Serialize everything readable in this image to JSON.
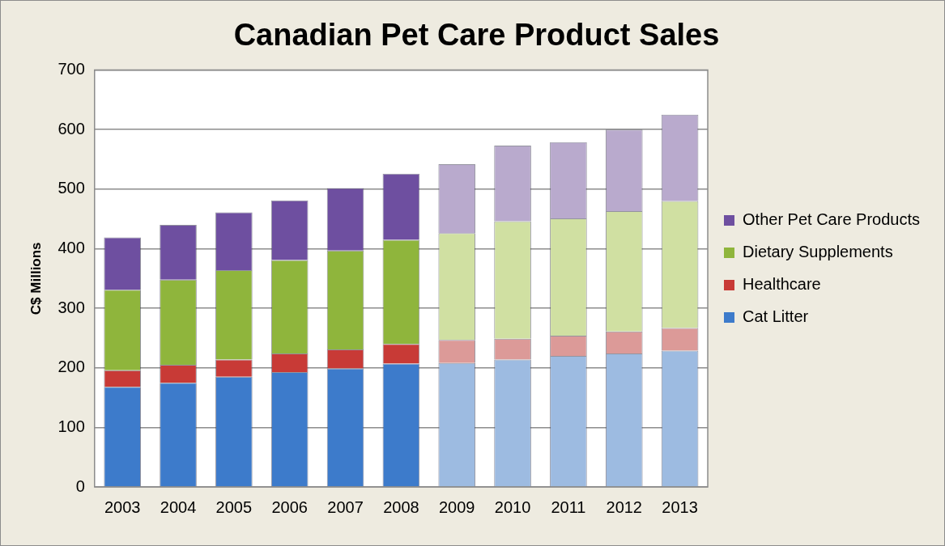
{
  "chart_data": {
    "type": "bar",
    "title": "Canadian Pet Care Product Sales",
    "ylabel": "C$ Millions",
    "stacked": true,
    "categories": [
      "2003",
      "2004",
      "2005",
      "2006",
      "2007",
      "2008",
      "2009",
      "2010",
      "2011",
      "2012",
      "2013"
    ],
    "series": [
      {
        "name": "Cat Litter",
        "color": "#3d7bcb",
        "colors": [
          "#3d7bcb",
          "#3d7bcb",
          "#3d7bcb",
          "#3d7bcb",
          "#3d7bcb",
          "#3d7bcb",
          "#9dbbe1",
          "#9dbbe1",
          "#9dbbe1",
          "#9dbbe1",
          "#9dbbe1"
        ],
        "values": [
          168,
          175,
          185,
          193,
          199,
          207,
          208,
          214,
          220,
          224,
          229
        ]
      },
      {
        "name": "Healthcare",
        "color": "#c83a36",
        "colors": [
          "#c83a36",
          "#c83a36",
          "#c83a36",
          "#c83a36",
          "#c83a36",
          "#c83a36",
          "#dc9a98",
          "#dc9a98",
          "#dc9a98",
          "#dc9a98",
          "#dc9a98"
        ],
        "values": [
          28,
          30,
          29,
          31,
          32,
          33,
          39,
          35,
          34,
          37,
          38
        ]
      },
      {
        "name": "Dietary Supplements",
        "color": "#8fb53c",
        "colors": [
          "#8fb53c",
          "#8fb53c",
          "#8fb53c",
          "#8fb53c",
          "#8fb53c",
          "#8fb53c",
          "#d0e0a2",
          "#d0e0a2",
          "#d0e0a2",
          "#d0e0a2",
          "#d0e0a2"
        ],
        "values": [
          135,
          143,
          150,
          157,
          166,
          175,
          179,
          197,
          197,
          202,
          213
        ]
      },
      {
        "name": "Other Pet Care Products",
        "color": "#6e4fa0",
        "colors": [
          "#6e4fa0",
          "#6e4fa0",
          "#6e4fa0",
          "#6e4fa0",
          "#6e4fa0",
          "#6e4fa0",
          "#b9aacd",
          "#b9aacd",
          "#b9aacd",
          "#b9aacd",
          "#b9aacd"
        ],
        "values": [
          88,
          92,
          97,
          100,
          105,
          111,
          116,
          127,
          128,
          137,
          145
        ]
      }
    ],
    "ylim": [
      0,
      700
    ],
    "yticks": [
      0,
      100,
      200,
      300,
      400,
      500,
      600,
      700
    ],
    "grid": "y",
    "legend": "right"
  }
}
